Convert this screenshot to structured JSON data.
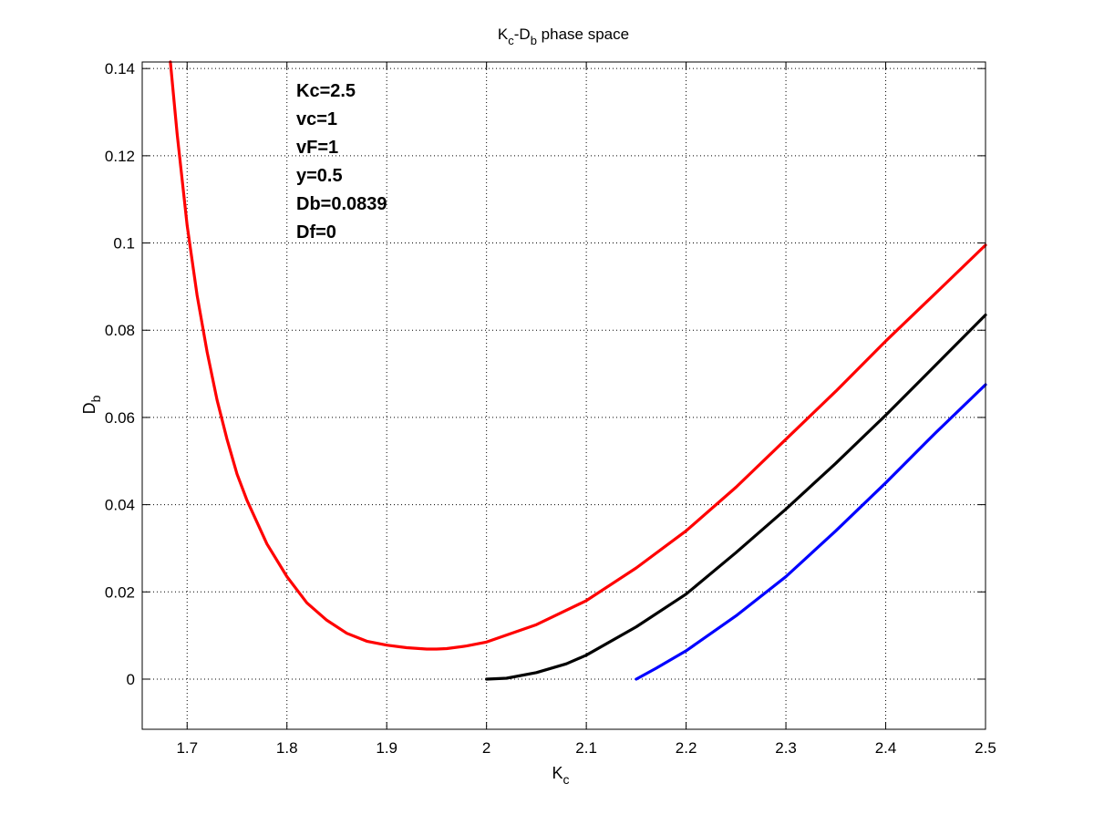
{
  "chart_data": {
    "type": "line",
    "title": {
      "main": "K",
      "sub1": "c",
      "mid": "-D",
      "sub2": "b",
      "tail": " phase space"
    },
    "xlabel": {
      "main": "K",
      "sub": "c"
    },
    "ylabel": {
      "main": "D",
      "sub": "b"
    },
    "xlim": [
      1.655,
      2.5
    ],
    "ylim": [
      -0.0115,
      0.1415
    ],
    "xticks": [
      1.7,
      1.8,
      1.9,
      2.0,
      2.1,
      2.2,
      2.3,
      2.4,
      2.5
    ],
    "xtick_labels": [
      "1.7",
      "1.8",
      "1.9",
      "2",
      "2.1",
      "2.2",
      "2.3",
      "2.4",
      "2.5"
    ],
    "yticks": [
      0,
      0.02,
      0.04,
      0.06,
      0.08,
      0.1,
      0.12,
      0.14
    ],
    "ytick_labels": [
      "0",
      "0.02",
      "0.04",
      "0.06",
      "0.08",
      "0.1",
      "0.12",
      "0.14"
    ],
    "grid": true,
    "annotation_lines": [
      "Kc=2.5",
      "vc=1",
      "vF=1",
      "y=0.5",
      "Db=0.0839",
      "Df=0"
    ],
    "series": [
      {
        "color": "#ff0000",
        "x": [
          1.683,
          1.69,
          1.7,
          1.71,
          1.72,
          1.73,
          1.74,
          1.75,
          1.76,
          1.78,
          1.8,
          1.82,
          1.84,
          1.86,
          1.88,
          1.9,
          1.92,
          1.94,
          1.95,
          1.96,
          1.98,
          2.0,
          2.05,
          2.1,
          2.15,
          2.2,
          2.25,
          2.3,
          2.35,
          2.4,
          2.45,
          2.5
        ],
        "y": [
          0.142,
          0.125,
          0.104,
          0.088,
          0.075,
          0.064,
          0.055,
          0.047,
          0.041,
          0.031,
          0.0235,
          0.0175,
          0.0135,
          0.0105,
          0.0087,
          0.0078,
          0.0072,
          0.0069,
          0.0069,
          0.007,
          0.0076,
          0.0085,
          0.0125,
          0.018,
          0.0255,
          0.034,
          0.044,
          0.055,
          0.066,
          0.0775,
          0.0885,
          0.0995
        ]
      },
      {
        "color": "#000000",
        "x": [
          2.0,
          2.02,
          2.05,
          2.08,
          2.1,
          2.15,
          2.2,
          2.25,
          2.3,
          2.35,
          2.4,
          2.45,
          2.5
        ],
        "y": [
          0.0,
          0.0002,
          0.0015,
          0.0035,
          0.0055,
          0.012,
          0.0195,
          0.029,
          0.039,
          0.0495,
          0.0605,
          0.072,
          0.0835
        ]
      },
      {
        "color": "#0000ff",
        "x": [
          2.15,
          2.17,
          2.2,
          2.25,
          2.3,
          2.35,
          2.4,
          2.45,
          2.5
        ],
        "y": [
          0.0,
          0.0025,
          0.0065,
          0.0145,
          0.0235,
          0.034,
          0.045,
          0.0565,
          0.0675
        ]
      }
    ]
  }
}
